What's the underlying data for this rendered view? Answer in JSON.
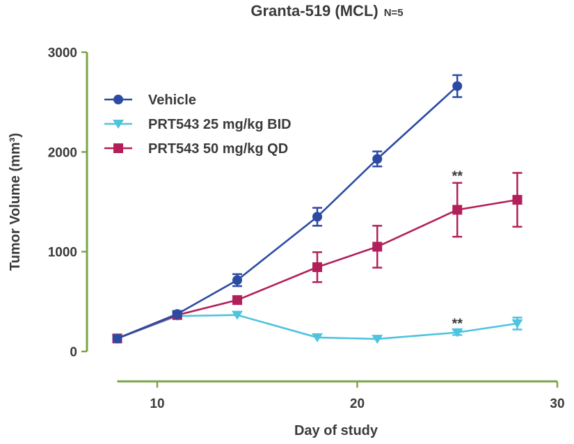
{
  "chart_data": {
    "type": "line",
    "title": "Granta-519 (MCL)",
    "subtitle": "N=5",
    "xlabel": "Day of study",
    "ylabel": "Tumor Volume (mm³)",
    "xlim": [
      8,
      30
    ],
    "ylim": [
      0,
      3000
    ],
    "xticks": [
      10,
      20,
      30
    ],
    "yticks": [
      0,
      1000,
      2000,
      3000
    ],
    "grid": false,
    "legend_position": "top-left",
    "axis_color": "#7aa645",
    "series": [
      {
        "name": "Vehicle",
        "color": "#2b4aa2",
        "marker": "circle",
        "x": [
          8,
          11,
          14,
          18,
          21,
          25
        ],
        "values": [
          130,
          375,
          715,
          1350,
          1930,
          2660
        ],
        "errors": [
          20,
          30,
          60,
          90,
          75,
          110
        ]
      },
      {
        "name": "PRT543 25 mg/kg BID",
        "color": "#4dc3de",
        "marker": "triangle-down",
        "x": [
          8,
          11,
          14,
          18,
          21,
          25,
          28
        ],
        "values": [
          130,
          355,
          365,
          140,
          125,
          190,
          280
        ],
        "errors": [
          15,
          20,
          20,
          15,
          15,
          25,
          60
        ]
      },
      {
        "name": "PRT543 50 mg/kg QD",
        "color": "#b21f5a",
        "marker": "square",
        "x": [
          8,
          11,
          14,
          18,
          21,
          25,
          28
        ],
        "values": [
          130,
          365,
          515,
          845,
          1050,
          1420,
          1520
        ],
        "errors": [
          15,
          20,
          30,
          150,
          210,
          270,
          270
        ]
      }
    ],
    "annotations": [
      {
        "text": "**",
        "x": 25,
        "y": 1770,
        "series": "PRT543 50 mg/kg QD"
      },
      {
        "text": "**",
        "x": 25,
        "y": 290,
        "series": "PRT543 25 mg/kg BID"
      }
    ]
  }
}
